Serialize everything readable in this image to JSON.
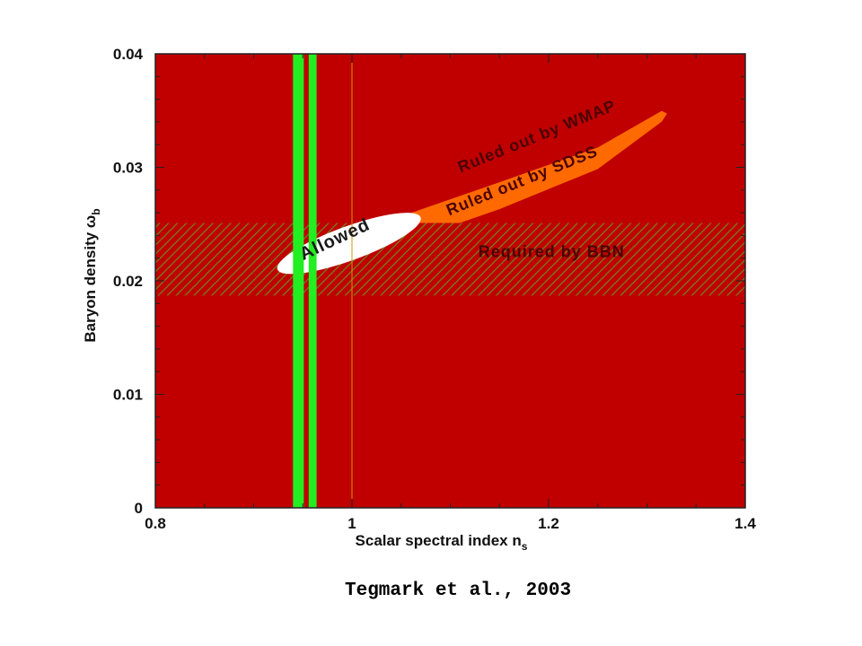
{
  "chart_data": {
    "type": "area",
    "xlabel": "Scalar spectral index n",
    "xlabel_sub": "s",
    "ylabel": "Baryon density ω",
    "ylabel_sub": "b",
    "xlim": [
      0.8,
      1.4
    ],
    "ylim": [
      0,
      0.04
    ],
    "xticks": [
      0.8,
      1,
      1.2,
      1.4
    ],
    "xtick_labels": [
      "0.8",
      "1",
      "1.2",
      "1.4"
    ],
    "yticks": [
      0,
      0.01,
      0.02,
      0.03,
      0.04
    ],
    "ytick_labels": [
      "0",
      "0.01",
      "0.02",
      "0.03",
      "0.04"
    ],
    "regions": [
      {
        "name": "Ruled out by WMAP",
        "color": "#c00000",
        "extent": "everything outside the orange band"
      },
      {
        "name": "Ruled out by SDSS",
        "color": "#ff6600",
        "shape": "elongated band",
        "centerline": [
          [
            0.925,
            0.021
          ],
          [
            1.05,
            0.0245
          ],
          [
            1.15,
            0.0275
          ],
          [
            1.25,
            0.0308
          ],
          [
            1.315,
            0.0345
          ]
        ]
      },
      {
        "name": "Allowed",
        "color": "#ffffff",
        "shape": "ellipse",
        "center": [
          0.997,
          0.0233
        ],
        "ns_range": [
          0.92,
          1.075
        ]
      },
      {
        "name": "Required by BBN",
        "pattern": "hatched",
        "color": "#6b8e23",
        "omega_b_range": [
          0.0187,
          0.0251
        ]
      }
    ],
    "vertical_bands": [
      {
        "x_range": [
          0.94,
          0.951
        ],
        "color": "#22ee22"
      },
      {
        "x_range": [
          0.956,
          0.964
        ],
        "color": "#22ee22"
      }
    ],
    "reference_line": {
      "x": 1.0,
      "color": "#d0a000"
    },
    "annotations": [
      {
        "text": "Ruled out by WMAP",
        "x": 1.19,
        "y": 0.0323,
        "angle_deg": -22
      },
      {
        "text": "Ruled out by SDSS",
        "x": 1.175,
        "y": 0.0284,
        "angle_deg": -22
      },
      {
        "text": "Allowed",
        "x": 0.985,
        "y": 0.0232,
        "angle_deg": -25
      },
      {
        "text": "Required by BBN",
        "x": 1.203,
        "y": 0.0221,
        "angle_deg": 0
      }
    ]
  },
  "citation": "Tegmark et al., 2003"
}
